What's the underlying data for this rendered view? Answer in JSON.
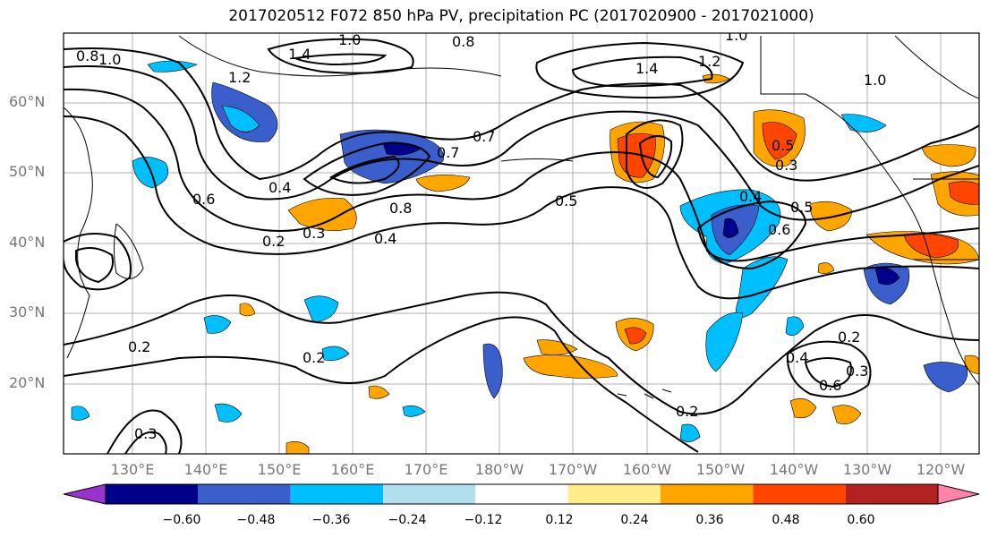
{
  "title": "2017020512 F072 850 hPa PV, precipitation PC (2017020900 - 2017021000)",
  "lat_labels": [
    "60°N",
    "50°N",
    "40°N",
    "30°N",
    "20°N"
  ],
  "lon_labels": [
    "130°E",
    "140°E",
    "150°E",
    "160°E",
    "170°E",
    "180°W",
    "170°W",
    "160°W",
    "150°W",
    "140°W",
    "130°W",
    "120°W"
  ],
  "colorbar": {
    "ticks": [
      "−0.60",
      "−0.48",
      "−0.36",
      "−0.24",
      "−0.12",
      "0.12",
      "0.24",
      "0.36",
      "0.48",
      "0.60"
    ],
    "colors": [
      "#9a32cd",
      "#00008b",
      "#3a5fcd",
      "#00bfff",
      "#b2dfee",
      "#ffffff",
      "#ffec8b",
      "#ffa500",
      "#ff4500",
      "#b22222",
      "#ff82ab"
    ]
  },
  "contour_labels": [
    "0.8",
    "1.0",
    "1.4",
    "1.0",
    "0.8",
    "1.0",
    "1.4",
    "1.2",
    "1.0",
    "1.2",
    "0.7",
    "0.4",
    "0.6",
    "0.7",
    "0.8",
    "0.3",
    "0.4",
    "0.2",
    "0.5",
    "0.5",
    "0.3",
    "0.4",
    "0.5",
    "0.6",
    "0.2",
    "0.2",
    "0.2",
    "0.4",
    "0.6",
    "0.3",
    "0.2",
    "0.3"
  ],
  "map_style": {
    "grid": true,
    "coastline_color": "#000000",
    "grid_color": "#b0b0b0"
  }
}
